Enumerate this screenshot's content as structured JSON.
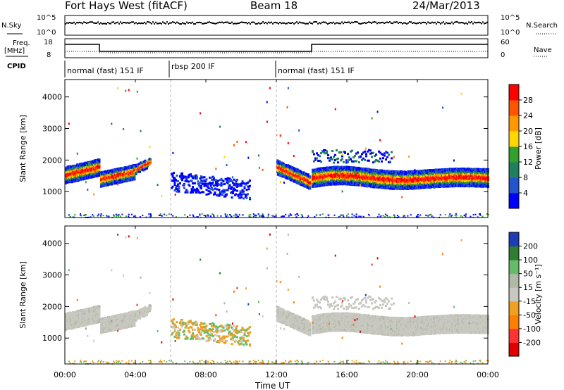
{
  "header": {
    "station": "Fort Hays West (fitACF)",
    "beam": "Beam 18",
    "date": "24/Mar/2013"
  },
  "strip": {
    "nsky_label": "N.Sky",
    "nsky_ticks": [
      "10^5",
      "10^0"
    ],
    "nsearch_label": "N.Search",
    "nsearch_ticks": [
      "10^5",
      "10^0"
    ],
    "freq_label": "Freq.",
    "freq_unit": "[MHz]",
    "freq_ticks": [
      "18",
      "8"
    ],
    "nave_label": "Nave",
    "nave_ticks": [
      "60",
      "0"
    ],
    "cpid_label": "CPID",
    "cpid_segments": [
      "normal (fast) 151 IF",
      "rbsp 200 IF",
      "normal (fast) 151 IF"
    ]
  },
  "chart_data": [
    {
      "type": "heatmap",
      "title": "Power",
      "ylabel": "Slant Range [km]",
      "ylim": [
        180,
        4550
      ],
      "yticks": [
        "1000",
        "2000",
        "3000",
        "4000"
      ],
      "xlim": [
        0,
        24
      ],
      "colorbar": {
        "label": "Power [dB]",
        "ticks": [
          "4",
          "8",
          "12",
          "16",
          "20",
          "24",
          "28"
        ],
        "colors": [
          "#0000ff",
          "#2255cc",
          "#1f7f5f",
          "#33a02c",
          "#ffd700",
          "#ff9900",
          "#ff5500",
          "#ff0000"
        ]
      }
    },
    {
      "type": "heatmap",
      "title": "Velocity",
      "ylabel": "Slant Range [km]",
      "ylim": [
        180,
        4550
      ],
      "yticks": [
        "1000",
        "2000",
        "3000",
        "4000"
      ],
      "xlim": [
        0,
        24
      ],
      "xticks": [
        "00:00",
        "04:00",
        "08:00",
        "12:00",
        "16:00",
        "20:00",
        "00:00"
      ],
      "xlabel": "Time UT",
      "colorbar": {
        "label": "Velocity [m s⁻¹]",
        "ticks": [
          "200",
          "100",
          "50",
          "15",
          "-15",
          "-50",
          "-100",
          "-200"
        ],
        "colors": [
          "#1e3cb4",
          "#2e7d32",
          "#66bb6a",
          "#b0b8a8",
          "#c8c8c0",
          "#f0a020",
          "#ff7f00",
          "#ff3333",
          "#e00000"
        ]
      }
    }
  ]
}
